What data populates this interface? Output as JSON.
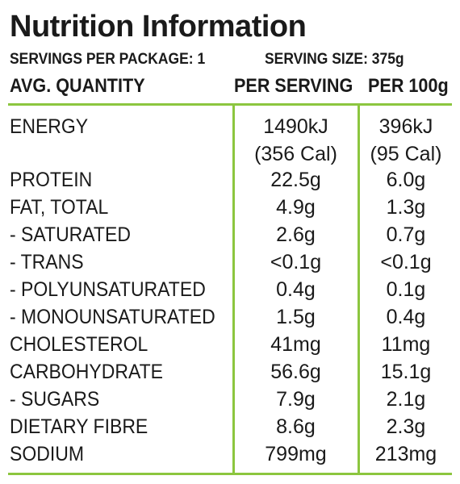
{
  "title": "Nutrition Information",
  "servings_per_package": "SERVINGS PER PACKAGE: 1",
  "serving_size": "SERVING SIZE: 375g",
  "columns": {
    "nutrient": "AVG. QUANTITY",
    "per_serving": "PER SERVING",
    "per_100g": "PER 100g"
  },
  "rows": [
    {
      "name": "ENERGY",
      "per_serving": "1490kJ",
      "per_serving_sub": "(356 Cal)",
      "per_100g": "396kJ",
      "per_100g_sub": "(95 Cal)"
    },
    {
      "name": "PROTEIN",
      "per_serving": "22.5g",
      "per_100g": "6.0g"
    },
    {
      "name": "FAT, TOTAL",
      "per_serving": "4.9g",
      "per_100g": "1.3g"
    },
    {
      "name": "- SATURATED",
      "per_serving": "2.6g",
      "per_100g": "0.7g"
    },
    {
      "name": "- TRANS",
      "per_serving": "<0.1g",
      "per_100g": "<0.1g"
    },
    {
      "name": "- POLYUNSATURATED",
      "per_serving": "0.4g",
      "per_100g": "0.1g"
    },
    {
      "name": "- MONOUNSATURATED",
      "per_serving": "1.5g",
      "per_100g": "0.4g"
    },
    {
      "name": "CHOLESTEROL",
      "per_serving": "41mg",
      "per_100g": "11mg"
    },
    {
      "name": "CARBOHYDRATE",
      "per_serving": "56.6g",
      "per_100g": "15.1g"
    },
    {
      "name": "- SUGARS",
      "per_serving": "7.9g",
      "per_100g": "2.1g"
    },
    {
      "name": "DIETARY FIBRE",
      "per_serving": "8.6g",
      "per_100g": "2.3g"
    },
    {
      "name": "SODIUM",
      "per_serving": "799mg",
      "per_100g": "213mg"
    }
  ],
  "colors": {
    "rule": "#8cc63f",
    "text": "#1a1a1a"
  }
}
